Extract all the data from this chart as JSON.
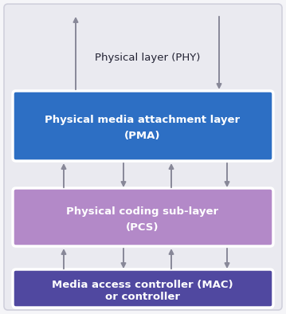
{
  "fig_width": 3.59,
  "fig_height": 3.94,
  "bg_color": "#f5f5f8",
  "outer_box_facecolor": "#eaeaf0",
  "outer_box_edgecolor": "#d0d0dc",
  "pma_color": "#2d6fc4",
  "pma_text_line1": "Physical media attachment layer",
  "pma_text_line2": "(PMA)",
  "pcs_color": "#b389c8",
  "pcs_text_line1": "Physical coding sub-layer",
  "pcs_text_line2": "(PCS)",
  "mac_color": "#5048a0",
  "mac_text_line1": "Media access controller (MAC)",
  "mac_text_line2": "or controller",
  "phy_label": "Physical layer (PHY)",
  "arrow_color": "#888898",
  "text_white": "#ffffff",
  "text_dark": "#222233",
  "box_white_border": "#ffffff"
}
